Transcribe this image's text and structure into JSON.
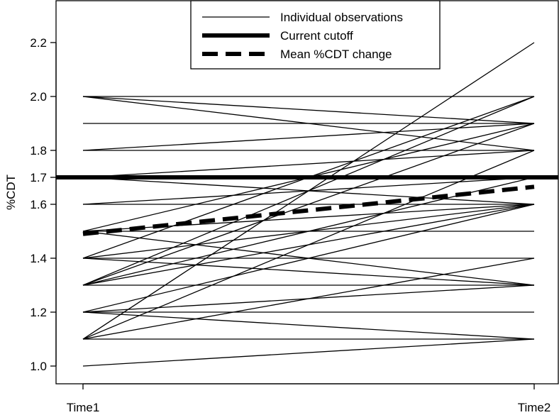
{
  "chart_data": {
    "type": "line",
    "ylabel": "%CDT",
    "xlabel": "",
    "x_categories": [
      "Time1",
      "Time2"
    ],
    "ylim": [
      0.92,
      2.34
    ],
    "y_ticks": [
      {
        "value": 1.0,
        "label": "1.0"
      },
      {
        "value": 1.2,
        "label": "1.2"
      },
      {
        "value": 1.4,
        "label": "1.4"
      },
      {
        "value": 1.6,
        "label": "1.6"
      },
      {
        "value": 1.7,
        "label": "1.7"
      },
      {
        "value": 1.8,
        "label": "1.8"
      },
      {
        "value": 2.0,
        "label": "2.0"
      },
      {
        "value": 2.2,
        "label": "2.2"
      }
    ],
    "grid": false,
    "legend_position": "top-center",
    "legend": [
      {
        "label": "Individual observations",
        "style": "thin-solid"
      },
      {
        "label": "Current cutoff",
        "style": "thick-solid"
      },
      {
        "label": "Mean %CDT change",
        "style": "thick-dashed"
      }
    ],
    "observations": [
      [
        2.0,
        2.0
      ],
      [
        2.0,
        1.9
      ],
      [
        2.0,
        1.8
      ],
      [
        1.9,
        1.9
      ],
      [
        1.8,
        1.8
      ],
      [
        1.8,
        1.9
      ],
      [
        1.7,
        1.7
      ],
      [
        1.7,
        1.8
      ],
      [
        1.7,
        1.6
      ],
      [
        1.6,
        1.6
      ],
      [
        1.6,
        1.7
      ],
      [
        1.5,
        1.5
      ],
      [
        1.5,
        1.6
      ],
      [
        1.5,
        1.9
      ],
      [
        1.5,
        1.3
      ],
      [
        1.4,
        1.4
      ],
      [
        1.4,
        1.6
      ],
      [
        1.4,
        2.0
      ],
      [
        1.4,
        1.3
      ],
      [
        1.3,
        1.3
      ],
      [
        1.3,
        1.6
      ],
      [
        1.3,
        1.9
      ],
      [
        1.3,
        2.0
      ],
      [
        1.3,
        1.7
      ],
      [
        1.2,
        1.2
      ],
      [
        1.2,
        1.3
      ],
      [
        1.2,
        1.6
      ],
      [
        1.2,
        1.1
      ],
      [
        1.1,
        1.1
      ],
      [
        1.1,
        1.4
      ],
      [
        1.1,
        1.8
      ],
      [
        1.1,
        2.2
      ],
      [
        1.0,
        1.1
      ]
    ],
    "cutoff": 1.7,
    "mean_change": [
      1.49,
      1.665
    ],
    "colors": {
      "lines": "#000000",
      "background": "#ffffff"
    }
  }
}
